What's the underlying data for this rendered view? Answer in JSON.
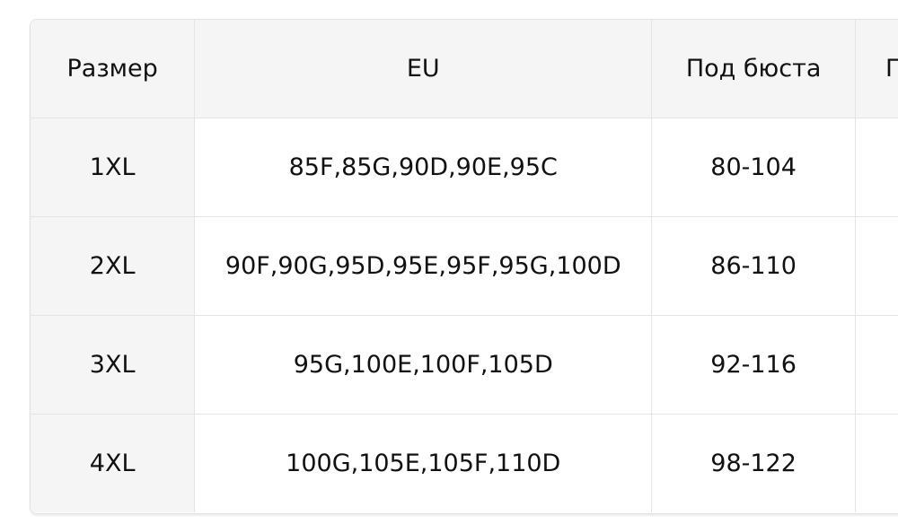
{
  "table": {
    "headers": [
      "Размер",
      "EU",
      "Под бюста",
      "П"
    ],
    "rows": [
      {
        "size": "1XL",
        "eu": "85F,85G,90D,90E,95C",
        "underbust": "80-104"
      },
      {
        "size": "2XL",
        "eu": "90F,90G,95D,95E,95F,95G,100D",
        "underbust": "86-110"
      },
      {
        "size": "3XL",
        "eu": "95G,100E,100F,105D",
        "underbust": "92-116"
      },
      {
        "size": "4XL",
        "eu": "100G,105E,105F,110D",
        "underbust": "98-122"
      }
    ]
  }
}
